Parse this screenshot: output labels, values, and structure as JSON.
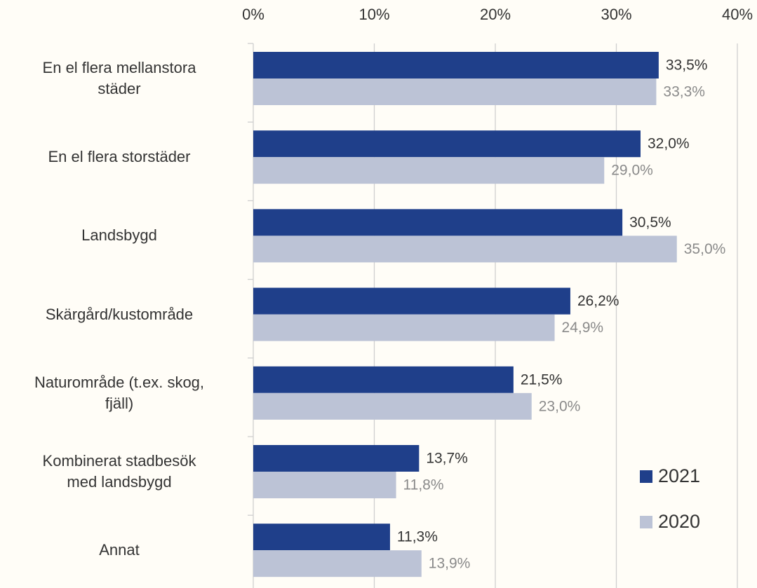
{
  "chart_data": {
    "type": "hbar",
    "categories": [
      "En el flera mellanstora\nstäder",
      "En el flera storstäder",
      "Landsbygd",
      "Skärgård/kustområde",
      "Naturområde (t.ex. skog,\nfjäll)",
      "Kombinerat stadbesök\nmed landsbygd",
      "Annat"
    ],
    "series": [
      {
        "name": "2021",
        "color": "#1f3f8a",
        "label_color": "#333333",
        "values": [
          33.5,
          32.0,
          30.5,
          26.2,
          21.5,
          13.7,
          11.3
        ],
        "value_labels": [
          "33,5%",
          "32,0%",
          "30,5%",
          "26,2%",
          "21,5%",
          "13,7%",
          "11,3%"
        ]
      },
      {
        "name": "2020",
        "color": "#bcc3d6",
        "label_color": "#8a8a8a",
        "values": [
          33.3,
          29.0,
          35.0,
          24.9,
          23.0,
          11.8,
          13.9
        ],
        "value_labels": [
          "33,3%",
          "29,0%",
          "35,0%",
          "24,9%",
          "23,0%",
          "11,8%",
          "13,9%"
        ]
      }
    ],
    "xlim": [
      0,
      40
    ],
    "xticks": [
      {
        "value": 0,
        "label": "0%"
      },
      {
        "value": 10,
        "label": "10%"
      },
      {
        "value": 20,
        "label": "20%"
      },
      {
        "value": 30,
        "label": "30%"
      },
      {
        "value": 40,
        "label": "40%"
      }
    ],
    "grid": true,
    "legend": "lower right"
  }
}
